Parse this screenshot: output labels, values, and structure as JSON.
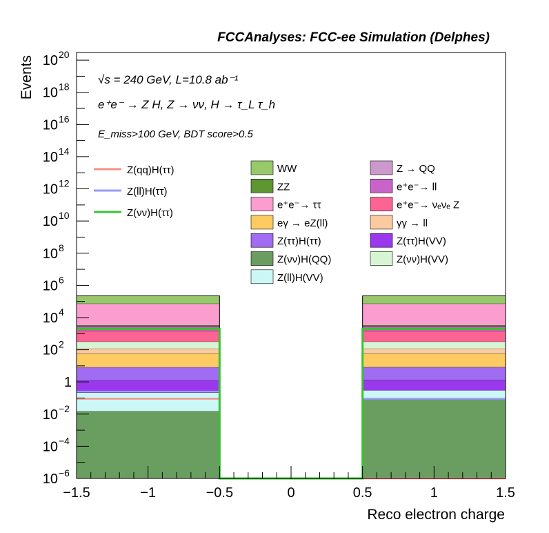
{
  "chart_data": {
    "type": "bar",
    "title": "FCCAnalyses: FCC-ee Simulation (Delphes)",
    "xlabel": "Reco electron charge",
    "ylabel": "Events",
    "y_scale": "log",
    "xlim": [
      -1.5,
      1.5
    ],
    "ylim": [
      1e-06,
      3e+20
    ],
    "grid": false,
    "annotations": {
      "line1": "√s = 240 GeV, L=10.8 ab⁻¹",
      "line2": "e⁺e⁻ → Z H, Z → νν, H → τ_L τ_h",
      "line3": "E_miss>100 GeV, BDT score>0.5"
    },
    "bins": [
      [
        -1.5,
        -0.5
      ],
      [
        -0.5,
        0.5
      ],
      [
        0.5,
        1.5
      ]
    ],
    "x_ticks": [
      "−1.5",
      "−1",
      "−0.5",
      "0",
      "0.5",
      "1",
      "1.5"
    ],
    "y_ticks": [
      {
        "exp": -6,
        "label": "10",
        "sup": "−6"
      },
      {
        "exp": -4,
        "label": "10",
        "sup": "−4"
      },
      {
        "exp": -2,
        "label": "10",
        "sup": "−2"
      },
      {
        "exp": 0,
        "label": "1",
        "sup": ""
      },
      {
        "exp": 2,
        "label": "10",
        "sup": "2"
      },
      {
        "exp": 4,
        "label": "10",
        "sup": "4"
      },
      {
        "exp": 6,
        "label": "10",
        "sup": "6"
      },
      {
        "exp": 8,
        "label": "10",
        "sup": "8"
      },
      {
        "exp": 10,
        "label": "10",
        "sup": "10"
      },
      {
        "exp": 12,
        "label": "10",
        "sup": "12"
      },
      {
        "exp": 14,
        "label": "10",
        "sup": "14"
      },
      {
        "exp": 16,
        "label": "10",
        "sup": "16"
      },
      {
        "exp": 18,
        "label": "10",
        "sup": "18"
      },
      {
        "exp": 20,
        "label": "10",
        "sup": "20"
      }
    ],
    "stack_series": [
      {
        "name": "Z(νν)H(QQ)",
        "color": "#6a9e60",
        "values": [
          0.015,
          0,
          0.08
        ]
      },
      {
        "name": "Z(ll)H(VV)",
        "color": "#ccf7f7",
        "values": [
          0.2,
          0,
          0.22
        ]
      },
      {
        "name": "Z(ττ)H(VV)",
        "color": "#9b38ee",
        "values": [
          1.0,
          0,
          1.0
        ]
      },
      {
        "name": "Z(ττ)H(ττ)",
        "color": "#a06cf2",
        "values": [
          7,
          0,
          7
        ]
      },
      {
        "name": "eγ → eZ(ll)",
        "color": "#fecb62",
        "values": [
          50,
          0,
          50
        ]
      },
      {
        "name": "γγ → ll",
        "color": "#fbcaa1",
        "values": [
          60,
          0,
          60
        ]
      },
      {
        "name": "Z(νν)H(VV)",
        "color": "#d7f5d2",
        "values": [
          200,
          0,
          200
        ]
      },
      {
        "name": "e⁺e⁻→ νₑνₑ Z",
        "color": "#fb6493",
        "values": [
          1200,
          0,
          1200
        ]
      },
      {
        "name": "e⁺e⁻→ ll",
        "color": "#c763c9",
        "values": [
          1300,
          0,
          1300
        ]
      },
      {
        "name": "Z → QQ",
        "color": "#cc99cc",
        "values": [
          100,
          0,
          100
        ]
      },
      {
        "name": "ZZ",
        "color": "#5e9632",
        "values": [
          400,
          0,
          400
        ]
      },
      {
        "name": "e⁺e⁻→ ττ",
        "color": "#fc9dcf",
        "values": [
          70000,
          0,
          70000
        ]
      },
      {
        "name": "WW",
        "color": "#97c96a",
        "values": [
          150000,
          0,
          150000
        ]
      }
    ],
    "line_series": [
      {
        "name": "Z(qq)H(ττ)",
        "color": "#f5908a",
        "values": [
          0.09,
          0,
          0
        ]
      },
      {
        "name": "Z(ll)H(ττ)",
        "color": "#9a9cfa",
        "values": [
          0.25,
          0,
          0.09
        ]
      },
      {
        "name": "Z(νν)H(ττ)",
        "color": "#38c32f",
        "values": [
          2000,
          1e-06,
          2000
        ]
      }
    ],
    "legend": {
      "placement": "top-right",
      "lines": [
        {
          "label": "Z(qq)H(ττ)",
          "color": "#f5908a"
        },
        {
          "label": "Z(ll)H(ττ)",
          "color": "#9a9cfa"
        },
        {
          "label": "Z(νν)H(ττ)",
          "color": "#38c32f"
        }
      ],
      "col2": [
        {
          "label": "WW",
          "color": "#97c96a"
        },
        {
          "label": "ZZ",
          "color": "#5e9632"
        },
        {
          "label": "e⁺e⁻→ ττ",
          "color": "#fc9dcf"
        },
        {
          "label": "eγ → eZ(ll)",
          "color": "#fecb62"
        },
        {
          "label": "Z(ττ)H(ττ)",
          "color": "#a06cf2"
        },
        {
          "label": "Z(νν)H(QQ)",
          "color": "#6a9e60"
        },
        {
          "label": "Z(ll)H(VV)",
          "color": "#ccf7f7"
        }
      ],
      "col3": [
        {
          "label": "Z → QQ",
          "color": "#cc99cc"
        },
        {
          "label": "e⁺e⁻→ ll",
          "color": "#c763c9"
        },
        {
          "label": "e⁺e⁻→ νₑνₑ Z",
          "color": "#fb6493"
        },
        {
          "label": "γγ → ll",
          "color": "#fbcaa1"
        },
        {
          "label": "Z(ττ)H(VV)",
          "color": "#9b38ee"
        },
        {
          "label": "Z(νν)H(VV)",
          "color": "#d7f5d2"
        }
      ]
    }
  }
}
